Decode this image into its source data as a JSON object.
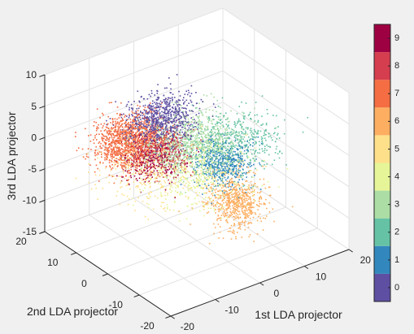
{
  "chart_data": {
    "type": "scatter3d",
    "title": "",
    "xlabel": "1st LDA projector",
    "ylabel": "2nd LDA projector",
    "zlabel": "3rd LDA projector",
    "xlim": [
      -20,
      20
    ],
    "ylim": [
      -20,
      20
    ],
    "zlim": [
      -15,
      10
    ],
    "xticks": [
      "-20",
      "-10",
      "0",
      "10",
      "20"
    ],
    "yticks": [
      "-20",
      "-10",
      "0",
      "10",
      "20"
    ],
    "zticks": [
      "-15",
      "-10",
      "-5",
      "0",
      "5",
      "10"
    ],
    "grid": true,
    "view": "3d-default",
    "colorbar": {
      "placement": "right",
      "labels": [
        "0",
        "1",
        "2",
        "3",
        "4",
        "5",
        "6",
        "7",
        "8",
        "9"
      ],
      "colors": [
        "#5e4fa2",
        "#3288bd",
        "#66c2a5",
        "#abdda4",
        "#e6f598",
        "#fee08b",
        "#fdae61",
        "#f46d43",
        "#d53e4f",
        "#9e0142"
      ]
    },
    "series": [
      {
        "class": 0,
        "color": "#5e4fa2",
        "center": [
          -6,
          3,
          5
        ],
        "spread": [
          3.5,
          3,
          1.6
        ],
        "count": 700
      },
      {
        "class": 1,
        "color": "#3288bd",
        "center": [
          4,
          -3,
          -3
        ],
        "spread": [
          2.5,
          2.5,
          1.5
        ],
        "count": 450
      },
      {
        "class": 2,
        "color": "#66c2a5",
        "center": [
          9,
          1,
          -2
        ],
        "spread": [
          4.5,
          4,
          1.8
        ],
        "count": 550
      },
      {
        "class": 3,
        "color": "#abdda4",
        "center": [
          0,
          2,
          0
        ],
        "spread": [
          4.5,
          4,
          1.8
        ],
        "count": 800
      },
      {
        "class": 4,
        "color": "#e6f598",
        "center": [
          -1,
          -2,
          -4
        ],
        "spread": [
          5,
          5,
          1.5
        ],
        "count": 400
      },
      {
        "class": 5,
        "color": "#fee08b",
        "center": [
          -7,
          3,
          -3
        ],
        "spread": [
          6,
          5,
          1.8
        ],
        "count": 400
      },
      {
        "class": 6,
        "color": "#fdae61",
        "center": [
          3,
          -8,
          -7
        ],
        "spread": [
          2.5,
          3,
          1.8
        ],
        "count": 650
      },
      {
        "class": 7,
        "color": "#f46d43",
        "center": [
          -7,
          11,
          -1
        ],
        "spread": [
          3.5,
          3,
          1.8
        ],
        "count": 1300
      },
      {
        "class": 8,
        "color": "#d53e4f",
        "center": [
          -3,
          7,
          -2
        ],
        "spread": [
          2.5,
          2.5,
          1.5
        ],
        "count": 350
      },
      {
        "class": 9,
        "color": "#9e0142",
        "center": [
          -4,
          7,
          -3
        ],
        "spread": [
          3,
          3,
          1.5
        ],
        "count": 450
      }
    ]
  }
}
